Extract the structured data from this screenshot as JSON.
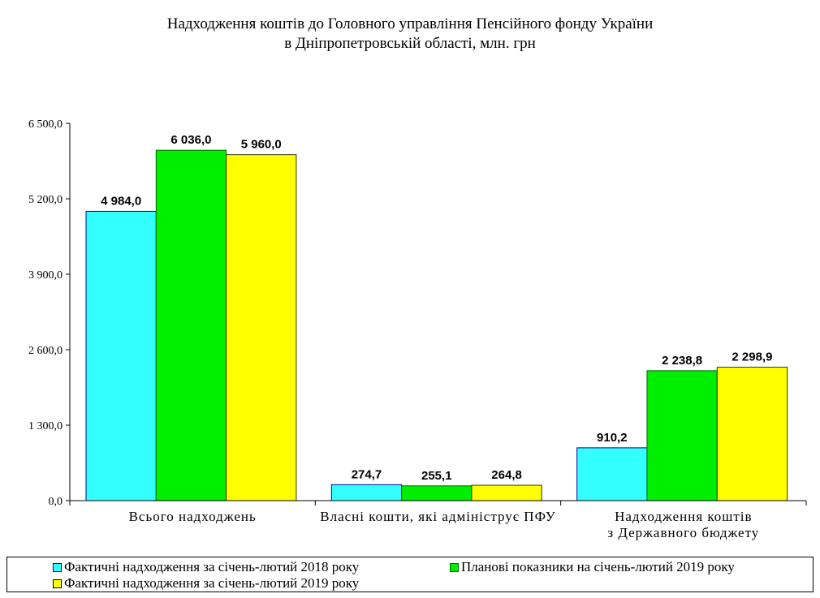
{
  "chart_data": {
    "type": "bar",
    "title": [
      "Надходження коштів до Головного управління Пенсійного фонду України",
      "в Дніпропетровській області, млн. грн"
    ],
    "categories": [
      [
        "Всього надходжень"
      ],
      [
        "Власні кошти, які адмініструє ПФУ"
      ],
      [
        "Надходження коштів",
        "з Державного бюджету"
      ]
    ],
    "series": [
      {
        "name": "Фактичні надходження за січень-лютий 2018 року",
        "color": "#33FFFF",
        "values": [
          4984.0,
          274.7,
          910.2
        ],
        "labels": [
          "4 984,0",
          "274,7",
          "910,2"
        ]
      },
      {
        "name": "Планові показники на січень-лютий 2019 року",
        "color": "#00EE00",
        "values": [
          6036.0,
          255.1,
          2238.8
        ],
        "labels": [
          "6 036,0",
          "255,1",
          "2 238,8"
        ]
      },
      {
        "name": "Фактичні надходження за січень-лютий 2019 року",
        "color": "#FFFF00",
        "values": [
          5960.0,
          264.8,
          2298.9
        ],
        "labels": [
          "5 960,0",
          "264,8",
          "2 298,9"
        ]
      }
    ],
    "ylim": [
      0,
      6500
    ],
    "yticks": [
      0,
      1300,
      2600,
      3900,
      5200,
      6500
    ],
    "ytick_labels": [
      "0,0",
      "1 300,0",
      "2 600,0",
      "3 900,0",
      "5 200,0",
      "6 500,0"
    ],
    "grid": false,
    "legend_position": "bottom"
  }
}
